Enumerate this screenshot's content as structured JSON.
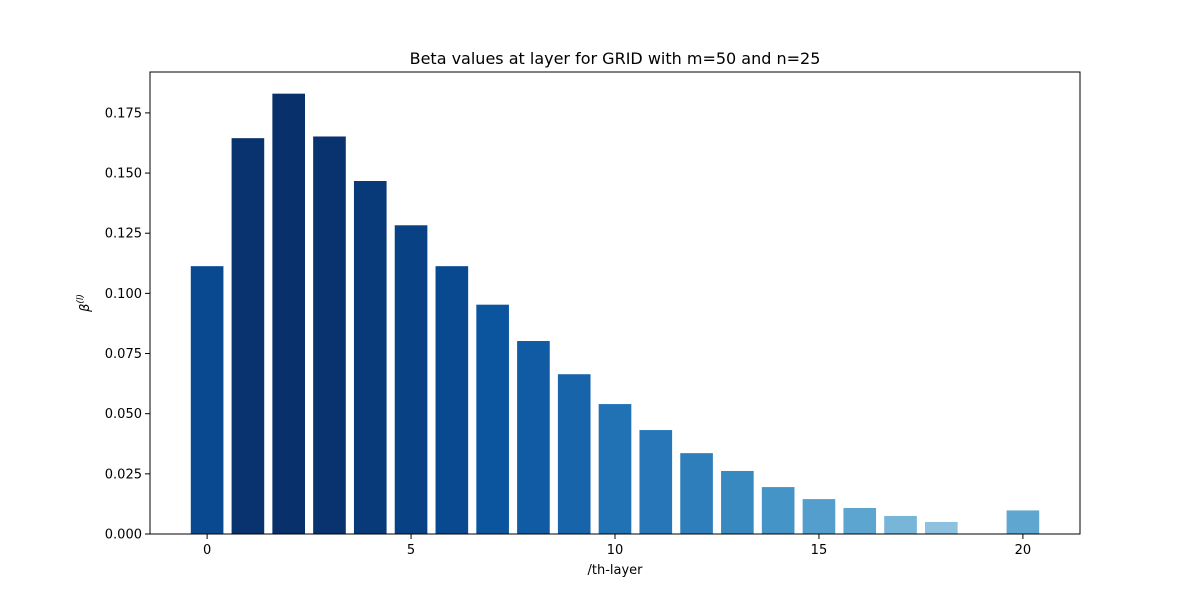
{
  "chart_data": {
    "type": "bar",
    "title": "Beta values at layer for GRID with m=50 and n=25",
    "xlabel": "/th-layer",
    "ylabel_base": "β",
    "ylabel_sup": "(l)",
    "x": [
      0,
      1,
      2,
      3,
      4,
      5,
      6,
      7,
      8,
      9,
      10,
      11,
      12,
      13,
      14,
      15,
      16,
      17,
      18,
      19,
      20
    ],
    "values": [
      0.1113,
      0.1645,
      0.183,
      0.1652,
      0.1467,
      0.1283,
      0.1113,
      0.0953,
      0.0802,
      0.0664,
      0.054,
      0.0432,
      0.0336,
      0.0262,
      0.0195,
      0.0145,
      0.0108,
      0.0075,
      0.005,
      0.0,
      0.0098
    ],
    "xlim": [
      -1.4,
      21.4
    ],
    "ylim": [
      0,
      0.192
    ],
    "xticks": [
      0,
      5,
      10,
      15,
      20
    ],
    "xtick_labels": [
      "0",
      "5",
      "10",
      "15",
      "20"
    ],
    "yticks": [
      0,
      0.025,
      0.05,
      0.075,
      0.1,
      0.125,
      0.15,
      0.175
    ],
    "ytick_labels": [
      "0.000",
      "0.025",
      "0.050",
      "0.075",
      "0.100",
      "0.125",
      "0.150",
      "0.175"
    ],
    "grid": false,
    "colormap": "Blues",
    "bar_colors": [
      "#084990",
      "#08336e",
      "#08306b",
      "#08336e",
      "#083a7a",
      "#084285",
      "#084990",
      "#0b559f",
      "#105ba4",
      "#1764ab",
      "#2171b5",
      "#2676b8",
      "#2e7ebc",
      "#3989c1",
      "#4594c7",
      "#539ecd",
      "#5da5d1",
      "#77b5d9",
      "#8dc1dd",
      "#ffffff",
      "#5fa6d1"
    ]
  }
}
